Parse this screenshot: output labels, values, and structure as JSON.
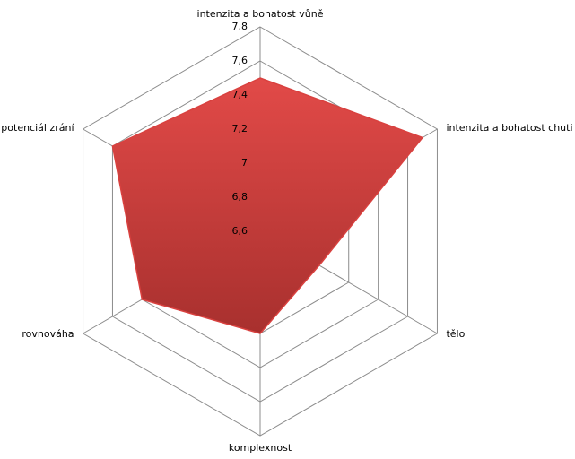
{
  "chart_data": {
    "type": "radar",
    "categories": [
      "intenzita a bohatost vůně",
      "intenzita a bohatost chuti",
      "tělo",
      "komplexnost",
      "rovnováha",
      "potenciál zrání"
    ],
    "series": [
      {
        "color": "#d9413f",
        "values": [
          7.5,
          7.7,
          7.0,
          7.2,
          7.4,
          7.6
        ]
      }
    ],
    "ylim": [
      6.6,
      7.8
    ],
    "yticks": [
      {
        "value": 6.6,
        "label": "6,6"
      },
      {
        "value": 6.8,
        "label": "6,8"
      },
      7,
      {
        "value": 7.2,
        "label": "7,2"
      },
      {
        "value": 7.4,
        "label": "7,4"
      },
      {
        "value": 7.6,
        "label": "7,6"
      },
      {
        "value": 7.8,
        "label": "7,8"
      }
    ],
    "grid": true
  }
}
